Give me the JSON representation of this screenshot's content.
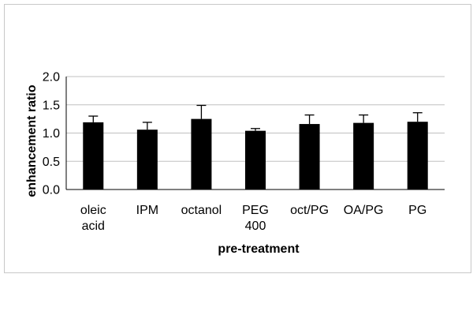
{
  "chart_data": {
    "type": "bar",
    "title": "",
    "xlabel": "pre-treatment",
    "ylabel": "enhancement ratio",
    "ylim": [
      0,
      2.0
    ],
    "yticks": [
      "0.0",
      "0.5",
      "1.0",
      "1.5",
      "2.0"
    ],
    "grid": true,
    "categories": [
      [
        "oleic",
        "acid"
      ],
      [
        "IPM"
      ],
      [
        "octanol"
      ],
      [
        "PEG",
        "400"
      ],
      [
        "oct/PG"
      ],
      [
        "OA/PG"
      ],
      [
        "PG"
      ]
    ],
    "values": [
      1.19,
      1.06,
      1.25,
      1.04,
      1.16,
      1.18,
      1.2
    ],
    "error_upper": [
      0.11,
      0.13,
      0.24,
      0.04,
      0.16,
      0.14,
      0.16
    ],
    "bar_color": "#000000",
    "grid_color": "#c0c0c0"
  }
}
